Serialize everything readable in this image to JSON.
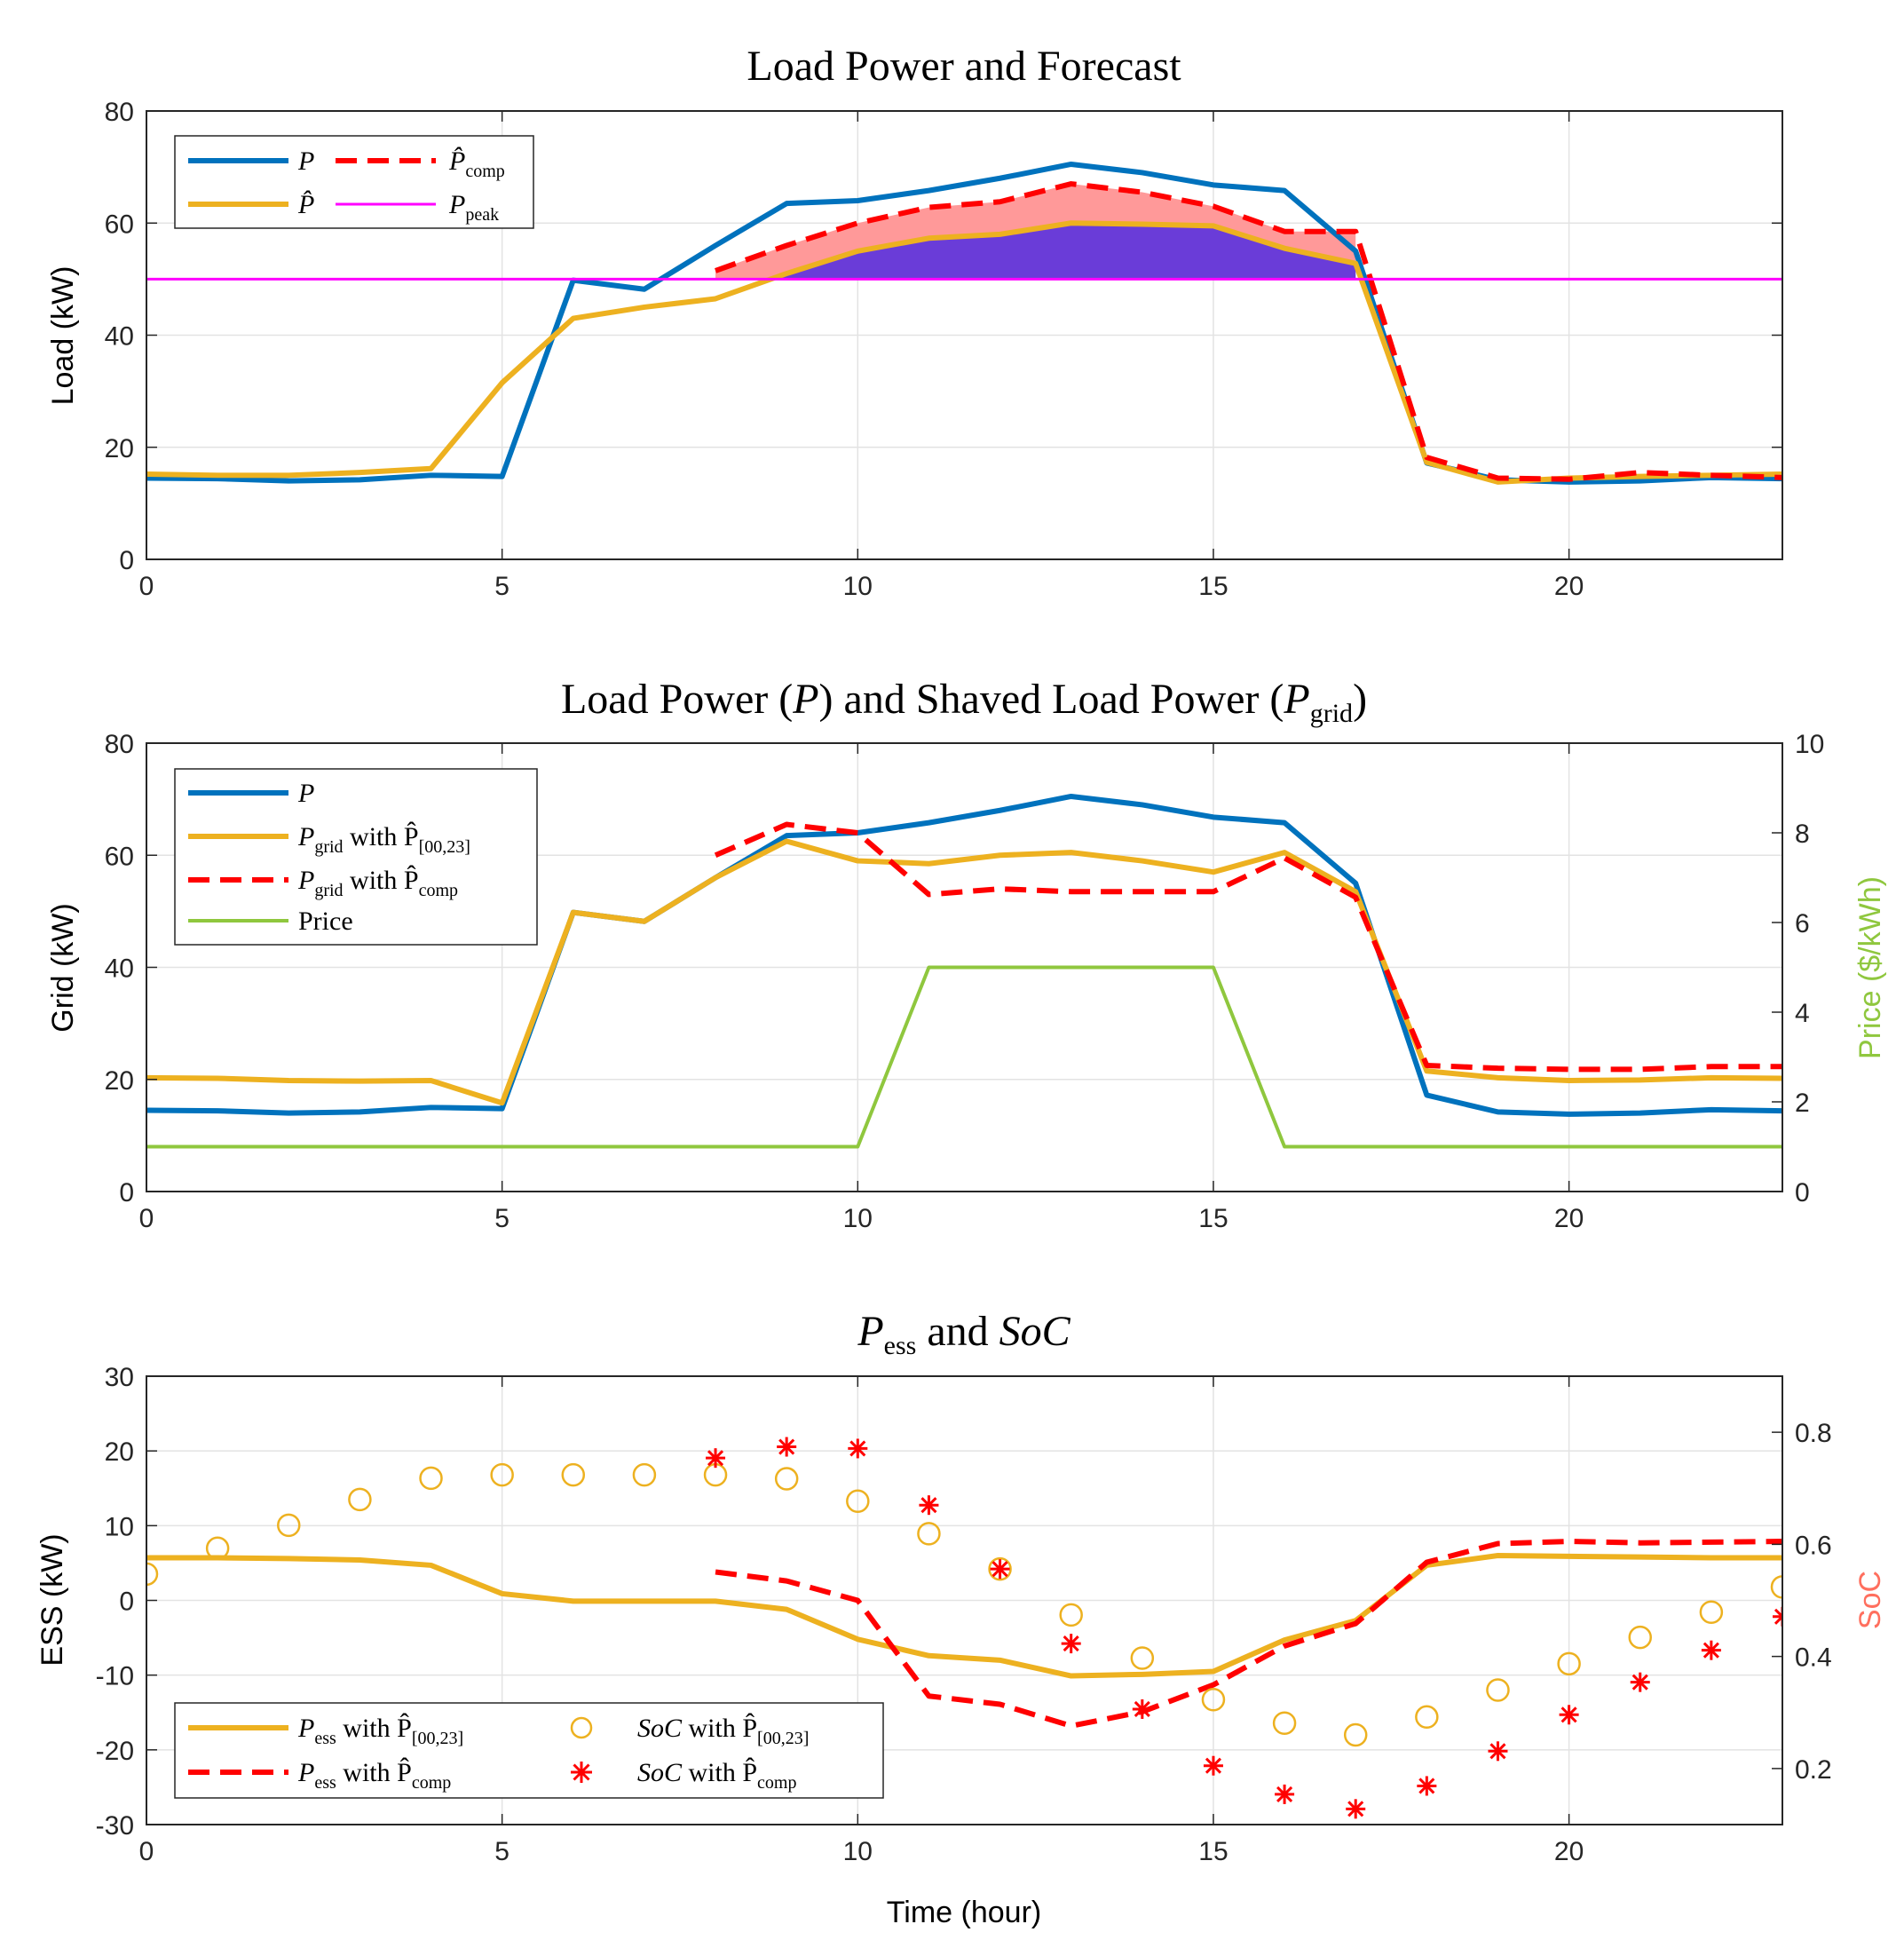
{
  "chart_data": [
    {
      "type": "line",
      "title": "Load Power and Forecast",
      "xlabel": "",
      "ylabel": "Load (kW)",
      "xlim": [
        0,
        23
      ],
      "ylim": [
        0,
        80
      ],
      "xticks": [
        "0",
        "5",
        "10",
        "15",
        "20"
      ],
      "yticks": [
        "0",
        "20",
        "40",
        "60",
        "80"
      ],
      "grid": true,
      "legend": {
        "position": "top-left"
      },
      "x": [
        0,
        1,
        2,
        3,
        4,
        5,
        6,
        7,
        8,
        9,
        10,
        11,
        12,
        13,
        14,
        15,
        16,
        17,
        18,
        19,
        20,
        21,
        22,
        23
      ],
      "series": [
        {
          "name": "P",
          "label": "P",
          "color": "#0072BD",
          "style": "solid",
          "x": [
            0,
            1,
            2,
            3,
            4,
            5,
            6,
            7,
            8,
            9,
            10,
            11,
            12,
            13,
            14,
            15,
            16,
            17,
            18,
            19,
            20,
            21,
            22,
            23
          ],
          "values": [
            14.5,
            14.4,
            14.0,
            14.2,
            15.0,
            14.8,
            49.8,
            48.2,
            56,
            63.5,
            64,
            65.8,
            68,
            70.5,
            69,
            66.8,
            65.8,
            55,
            17.2,
            14.2,
            13.8,
            14.0,
            14.6,
            14.4
          ]
        },
        {
          "name": "P_hat",
          "label": "P̂",
          "color": "#EDB120",
          "style": "solid",
          "x": [
            0,
            1,
            2,
            3,
            4,
            5,
            6,
            7,
            8,
            9,
            10,
            11,
            12,
            13,
            14,
            15,
            16,
            17,
            18,
            19,
            20,
            21,
            22,
            23
          ],
          "values": [
            15.2,
            15.0,
            15.0,
            15.5,
            16.2,
            31.5,
            43,
            45,
            46.5,
            51,
            55,
            57.3,
            58,
            60,
            59.8,
            59.5,
            55.5,
            52.8,
            17.3,
            13.8,
            14.5,
            14.8,
            15.0,
            15.2
          ]
        },
        {
          "name": "P_hat_comp",
          "label": "P̂",
          "subscript": "comp",
          "color": "#FF0000",
          "style": "dashed",
          "x": [
            8,
            9,
            10,
            11,
            12,
            13,
            14,
            15,
            16,
            17,
            18,
            19,
            20,
            21,
            22,
            23
          ],
          "values": [
            51.5,
            56,
            60,
            62.8,
            63.8,
            67,
            65.5,
            63,
            58.5,
            58.5,
            18.2,
            14.5,
            14.3,
            15.5,
            15.0,
            14.6
          ]
        },
        {
          "name": "P_peak",
          "label": "P",
          "subscript": "peak",
          "color": "#FF00FF",
          "style": "solid",
          "x": [
            0,
            23
          ],
          "values": [
            50,
            50
          ]
        }
      ],
      "shaded_regions": [
        {
          "name": "comp-above-peak",
          "color": "#FF9999",
          "between": [
            "P_hat_comp",
            "P_peak"
          ],
          "x_range": [
            8,
            17
          ]
        },
        {
          "name": "forecast-above-peak",
          "color": "#6A3CD8",
          "between": [
            "P_hat",
            "P_peak"
          ],
          "x_range": [
            8.9,
            17
          ]
        }
      ]
    },
    {
      "type": "line",
      "title": "Load Power (P) and Shaved Load Power (P_grid)",
      "title_parts": [
        "Load Power (",
        "P",
        ") and Shaved Load Power (",
        "P",
        "grid",
        ")"
      ],
      "xlabel": "",
      "ylabel": "Grid (kW)",
      "ylabel_right": "Price ($/kWh)",
      "xlim": [
        0,
        23
      ],
      "ylim": [
        0,
        80
      ],
      "ylim_right": [
        0,
        10
      ],
      "xticks": [
        "0",
        "5",
        "10",
        "15",
        "20"
      ],
      "yticks": [
        "0",
        "20",
        "40",
        "60",
        "80"
      ],
      "yticks_right": [
        "0",
        "2",
        "4",
        "6",
        "8",
        "10"
      ],
      "grid": true,
      "legend": {
        "position": "top-left"
      },
      "series": [
        {
          "name": "P",
          "label": "P",
          "color": "#0072BD",
          "style": "solid",
          "axis": "left",
          "x": [
            0,
            1,
            2,
            3,
            4,
            5,
            6,
            7,
            8,
            9,
            10,
            11,
            12,
            13,
            14,
            15,
            16,
            17,
            18,
            19,
            20,
            21,
            22,
            23
          ],
          "values": [
            14.5,
            14.4,
            14.0,
            14.2,
            15.0,
            14.8,
            49.8,
            48.2,
            56,
            63.5,
            64,
            65.8,
            68,
            70.5,
            69,
            66.8,
            65.8,
            55,
            17.2,
            14.2,
            13.8,
            14.0,
            14.6,
            14.4
          ]
        },
        {
          "name": "P_grid_00_23",
          "label": "P",
          "subscript": "grid",
          "label_rest": " with P̂",
          "subscript2": "[00,23]",
          "color": "#EDB120",
          "style": "solid",
          "axis": "left",
          "x": [
            0,
            1,
            2,
            3,
            4,
            5,
            6,
            7,
            8,
            9,
            10,
            11,
            12,
            13,
            14,
            15,
            16,
            17,
            18,
            19,
            20,
            21,
            22,
            23
          ],
          "values": [
            20.3,
            20.2,
            19.8,
            19.7,
            19.8,
            15.8,
            49.8,
            48.2,
            56,
            62.5,
            59,
            58.5,
            60,
            60.5,
            59,
            57,
            60.5,
            53.5,
            21.5,
            20.3,
            19.8,
            19.9,
            20.3,
            20.2
          ]
        },
        {
          "name": "P_grid_comp",
          "label": "P",
          "subscript": "grid",
          "label_rest": " with P̂",
          "subscript2": "comp",
          "color": "#FF0000",
          "style": "dashed",
          "axis": "left",
          "x": [
            8,
            9,
            10,
            11,
            12,
            13,
            14,
            15,
            16,
            17,
            18,
            19,
            20,
            21,
            22,
            23
          ],
          "values": [
            60,
            65.5,
            64,
            53,
            54,
            53.5,
            53.5,
            53.5,
            59.5,
            52.5,
            22.5,
            22,
            21.8,
            21.8,
            22.3,
            22.3
          ]
        },
        {
          "name": "Price",
          "label": "Price",
          "color": "#77AC30",
          "style": "solid",
          "axis": "right",
          "x": [
            0,
            10,
            11,
            15,
            16,
            23
          ],
          "values": [
            1,
            1,
            5,
            5,
            1,
            1
          ]
        }
      ]
    },
    {
      "type": "line",
      "title": "P_ess and SoC",
      "title_parts": [
        "P",
        "ess",
        " and ",
        "SoC"
      ],
      "xlabel": "Time (hour)",
      "ylabel": "ESS (kW)",
      "ylabel_right": "SoC",
      "xlim": [
        0,
        23
      ],
      "ylim": [
        -30,
        30
      ],
      "ylim_right": [
        0.1,
        0.9
      ],
      "xticks": [
        "0",
        "5",
        "10",
        "15",
        "20"
      ],
      "yticks": [
        "-30",
        "-20",
        "-10",
        "0",
        "10",
        "20",
        "30"
      ],
      "yticks_right": [
        "0.2",
        "0.4",
        "0.6",
        "0.8"
      ],
      "grid": true,
      "legend": {
        "position": "bottom-left"
      },
      "series": [
        {
          "name": "P_ess_00_23",
          "label": "P",
          "subscript": "ess",
          "label_rest": " with P̂",
          "subscript2": "[00,23]",
          "color": "#EDB120",
          "style": "solid",
          "axis": "left",
          "x": [
            0,
            1,
            2,
            3,
            4,
            5,
            6,
            7,
            8,
            9,
            10,
            11,
            12,
            13,
            14,
            15,
            16,
            17,
            18,
            19,
            20,
            21,
            22,
            23
          ],
          "values": [
            5.7,
            5.7,
            5.6,
            5.4,
            4.7,
            0.9,
            -0.1,
            -0.1,
            -0.1,
            -1.2,
            -5.2,
            -7.4,
            -8,
            -10.1,
            -9.9,
            -9.5,
            -5.3,
            -2.7,
            4.7,
            6,
            5.9,
            5.8,
            5.7,
            5.7
          ]
        },
        {
          "name": "P_ess_comp",
          "label": "P",
          "subscript": "ess",
          "label_rest": " with P̂",
          "subscript2": "comp",
          "color": "#FF0000",
          "style": "dashed",
          "axis": "left",
          "x": [
            8,
            9,
            10,
            11,
            12,
            13,
            14,
            15,
            16,
            17,
            18,
            19,
            20,
            21,
            22,
            23
          ],
          "values": [
            3.8,
            2.6,
            0,
            -12.8,
            -13.9,
            -16.8,
            -14.9,
            -11.3,
            -6.1,
            -3.1,
            5.1,
            7.6,
            7.9,
            7.7,
            7.8,
            7.9
          ]
        },
        {
          "name": "SoC_00_23",
          "label": "SoC",
          "label_rest": " with P̂",
          "subscript2": "[00,23]",
          "color": "#EDB120",
          "marker": "circle",
          "axis": "right",
          "x": [
            0,
            1,
            2,
            3,
            4,
            5,
            6,
            7,
            8,
            9,
            10,
            11,
            12,
            13,
            14,
            15,
            16,
            17,
            18,
            19,
            20,
            21,
            22,
            23
          ],
          "values": [
            0.547,
            0.593,
            0.634,
            0.68,
            0.718,
            0.724,
            0.724,
            0.724,
            0.724,
            0.717,
            0.677,
            0.619,
            0.556,
            0.474,
            0.397,
            0.323,
            0.281,
            0.26,
            0.292,
            0.34,
            0.387,
            0.434,
            0.479,
            0.524
          ]
        },
        {
          "name": "SoC_comp",
          "label": "SoC",
          "label_rest": " with P̂",
          "subscript2": "comp",
          "color": "#FF0000",
          "marker": "asterisk",
          "axis": "right",
          "x": [
            8,
            9,
            10,
            11,
            12,
            13,
            14,
            15,
            16,
            17,
            18,
            19,
            20,
            21,
            22,
            23
          ],
          "values": [
            0.754,
            0.774,
            0.771,
            0.67,
            0.556,
            0.423,
            0.306,
            0.205,
            0.154,
            0.128,
            0.169,
            0.231,
            0.296,
            0.354,
            0.411,
            0.471
          ]
        }
      ]
    }
  ]
}
